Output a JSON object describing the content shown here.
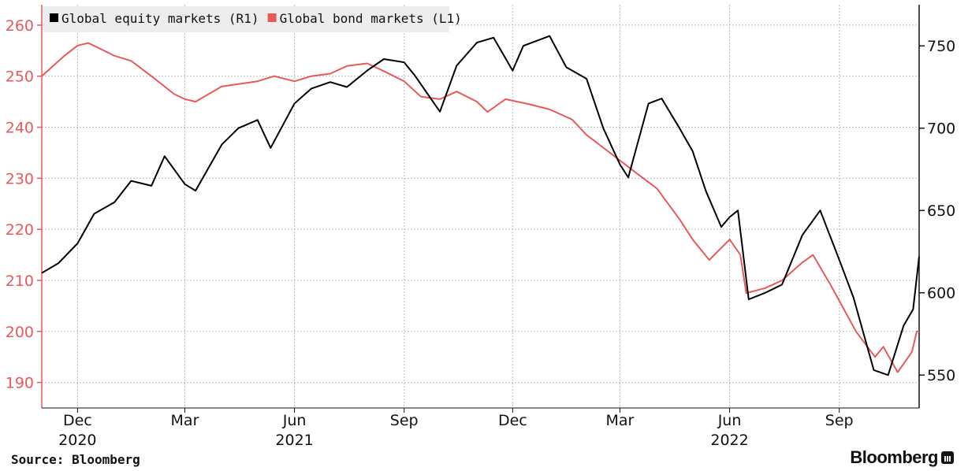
{
  "chart_data": {
    "type": "line",
    "title": "",
    "legend": {
      "placement": "top-left",
      "entries": [
        {
          "label": "Global equity markets (R1)",
          "color": "#000000"
        },
        {
          "label": "Global bond markets (L1)",
          "color": "#e85a5a"
        }
      ]
    },
    "x_range": [
      "2020-11-01",
      "2022-11-07"
    ],
    "x_ticks": [
      {
        "date": "2020-12-01",
        "label": "Dec",
        "year": "2020"
      },
      {
        "date": "2021-03-01",
        "label": "Mar",
        "year": ""
      },
      {
        "date": "2021-06-01",
        "label": "Jun",
        "year": "2021"
      },
      {
        "date": "2021-09-01",
        "label": "Sep",
        "year": ""
      },
      {
        "date": "2021-12-01",
        "label": "Dec",
        "year": ""
      },
      {
        "date": "2022-03-01",
        "label": "Mar",
        "year": ""
      },
      {
        "date": "2022-06-01",
        "label": "Jun",
        "year": "2022"
      },
      {
        "date": "2022-09-01",
        "label": "Sep",
        "year": ""
      }
    ],
    "y_left": {
      "min": 185,
      "max": 264,
      "ticks": [
        190,
        200,
        210,
        220,
        230,
        240,
        250,
        260
      ],
      "color": "#e85a5a"
    },
    "y_right": {
      "min": 530,
      "max": 775,
      "ticks": [
        550,
        600,
        650,
        700,
        750
      ],
      "color": "#111111"
    },
    "grid": true,
    "series": [
      {
        "name": "Global equity markets (R1)",
        "axis": "right",
        "color": "#000000",
        "points": [
          [
            "2020-11-01",
            612
          ],
          [
            "2020-11-15",
            618
          ],
          [
            "2020-12-01",
            630
          ],
          [
            "2020-12-15",
            648
          ],
          [
            "2021-01-01",
            655
          ],
          [
            "2021-01-15",
            668
          ],
          [
            "2021-02-01",
            665
          ],
          [
            "2021-02-12",
            683
          ],
          [
            "2021-03-01",
            666
          ],
          [
            "2021-03-10",
            662
          ],
          [
            "2021-04-01",
            690
          ],
          [
            "2021-04-15",
            700
          ],
          [
            "2021-05-01",
            705
          ],
          [
            "2021-05-12",
            688
          ],
          [
            "2021-06-01",
            715
          ],
          [
            "2021-06-15",
            724
          ],
          [
            "2021-07-01",
            728
          ],
          [
            "2021-07-15",
            725
          ],
          [
            "2021-08-01",
            735
          ],
          [
            "2021-08-15",
            742
          ],
          [
            "2021-09-01",
            740
          ],
          [
            "2021-09-10",
            732
          ],
          [
            "2021-10-01",
            710
          ],
          [
            "2021-10-15",
            738
          ],
          [
            "2021-11-01",
            752
          ],
          [
            "2021-11-15",
            755
          ],
          [
            "2021-12-01",
            735
          ],
          [
            "2021-12-10",
            750
          ],
          [
            "2022-01-01",
            756
          ],
          [
            "2022-01-15",
            737
          ],
          [
            "2022-02-01",
            730
          ],
          [
            "2022-02-15",
            700
          ],
          [
            "2022-03-01",
            678
          ],
          [
            "2022-03-08",
            670
          ],
          [
            "2022-03-25",
            715
          ],
          [
            "2022-04-05",
            718
          ],
          [
            "2022-04-20",
            700
          ],
          [
            "2022-05-01",
            686
          ],
          [
            "2022-05-12",
            662
          ],
          [
            "2022-05-25",
            640
          ],
          [
            "2022-06-01",
            646
          ],
          [
            "2022-06-08",
            650
          ],
          [
            "2022-06-17",
            596
          ],
          [
            "2022-07-01",
            600
          ],
          [
            "2022-07-15",
            605
          ],
          [
            "2022-08-01",
            635
          ],
          [
            "2022-08-16",
            650
          ],
          [
            "2022-09-01",
            620
          ],
          [
            "2022-09-13",
            597
          ],
          [
            "2022-09-30",
            553
          ],
          [
            "2022-10-12",
            550
          ],
          [
            "2022-10-25",
            580
          ],
          [
            "2022-11-02",
            590
          ],
          [
            "2022-11-07",
            622
          ]
        ]
      },
      {
        "name": "Global bond markets (L1)",
        "axis": "left",
        "color": "#e85a5a",
        "points": [
          [
            "2020-11-01",
            250
          ],
          [
            "2020-11-20",
            254
          ],
          [
            "2020-12-01",
            256
          ],
          [
            "2020-12-10",
            256.5
          ],
          [
            "2021-01-01",
            254
          ],
          [
            "2021-01-15",
            253
          ],
          [
            "2021-02-01",
            250
          ],
          [
            "2021-02-20",
            246.5
          ],
          [
            "2021-03-01",
            245.5
          ],
          [
            "2021-03-10",
            245
          ],
          [
            "2021-04-01",
            248
          ],
          [
            "2021-05-01",
            249
          ],
          [
            "2021-05-15",
            250
          ],
          [
            "2021-06-01",
            249
          ],
          [
            "2021-06-15",
            250
          ],
          [
            "2021-07-01",
            250.5
          ],
          [
            "2021-07-15",
            252
          ],
          [
            "2021-08-01",
            252.5
          ],
          [
            "2021-08-15",
            251
          ],
          [
            "2021-09-01",
            249
          ],
          [
            "2021-09-15",
            246
          ],
          [
            "2021-10-01",
            245.5
          ],
          [
            "2021-10-15",
            247
          ],
          [
            "2021-11-01",
            245
          ],
          [
            "2021-11-10",
            243
          ],
          [
            "2021-11-25",
            245.5
          ],
          [
            "2021-12-15",
            244.5
          ],
          [
            "2022-01-01",
            243.5
          ],
          [
            "2022-01-20",
            241.5
          ],
          [
            "2022-02-01",
            238.5
          ],
          [
            "2022-02-15",
            236
          ],
          [
            "2022-03-01",
            233.5
          ],
          [
            "2022-03-15",
            231
          ],
          [
            "2022-04-01",
            228
          ],
          [
            "2022-04-20",
            222
          ],
          [
            "2022-05-01",
            218
          ],
          [
            "2022-05-15",
            214
          ],
          [
            "2022-06-01",
            218
          ],
          [
            "2022-06-10",
            215
          ],
          [
            "2022-06-15",
            207.5
          ],
          [
            "2022-07-01",
            208.5
          ],
          [
            "2022-07-15",
            210
          ],
          [
            "2022-08-01",
            213.5
          ],
          [
            "2022-08-10",
            215
          ],
          [
            "2022-08-25",
            209
          ],
          [
            "2022-09-01",
            206
          ],
          [
            "2022-09-15",
            200
          ],
          [
            "2022-10-01",
            195
          ],
          [
            "2022-10-08",
            197
          ],
          [
            "2022-10-20",
            192
          ],
          [
            "2022-11-01",
            196
          ],
          [
            "2022-11-05",
            200
          ],
          [
            "2022-11-07",
            200
          ]
        ]
      }
    ]
  },
  "source": "Source: Bloomberg",
  "brand": "Bloomberg",
  "brand_icon": "bloomberg-terminal-icon"
}
